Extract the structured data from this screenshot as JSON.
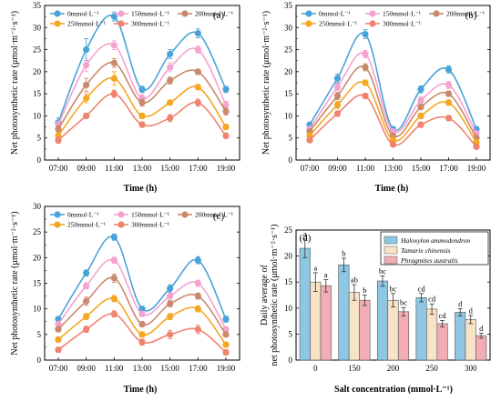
{
  "chart_data": [
    {
      "type": "line",
      "panel": "(a)",
      "x": [
        "07:00",
        "09:00",
        "11:00",
        "13:00",
        "15:00",
        "17:00",
        "19:00"
      ],
      "xlabel": "Time (h)",
      "ylabel": "Net photosynthetic rate (μmol·m⁻²·s⁻¹)",
      "ylim": [
        0,
        35
      ],
      "yticks": [
        0,
        5,
        10,
        15,
        20,
        25,
        30,
        35
      ],
      "legend": "top-left",
      "series": [
        {
          "name": "0mmol·L⁻¹",
          "color": "#4aa3d8",
          "values": [
            8.5,
            25,
            32.5,
            16,
            24,
            28.7,
            16
          ],
          "errors": [
            1,
            2.5,
            1,
            0.7,
            1,
            1,
            0.7
          ]
        },
        {
          "name": "150mmol·L⁻¹",
          "color": "#f4a3cf",
          "values": [
            8,
            21.5,
            26,
            14,
            21,
            25,
            12.5
          ],
          "errors": [
            0.8,
            1.5,
            1,
            0.8,
            1,
            0.8,
            0.8
          ]
        },
        {
          "name": "200mmol·L⁻¹",
          "color": "#c9896b",
          "values": [
            7,
            17,
            22,
            13,
            18,
            20,
            11
          ],
          "errors": [
            0.8,
            1.5,
            1,
            0.8,
            0.8,
            0.6,
            0.8
          ]
        },
        {
          "name": "250mmol·L⁻¹",
          "color": "#f5a623",
          "values": [
            5.5,
            14,
            18.5,
            10,
            13,
            16.5,
            7.5
          ],
          "errors": [
            0.7,
            1,
            1.5,
            0.6,
            0.5,
            0.6,
            0.6
          ]
        },
        {
          "name": "300mmol·L⁻¹",
          "color": "#f0836f",
          "values": [
            4.5,
            10,
            15,
            8,
            9.5,
            13,
            5.5
          ],
          "errors": [
            0.7,
            0.6,
            0.8,
            0.6,
            0.8,
            0.8,
            0.6
          ]
        }
      ]
    },
    {
      "type": "line",
      "panel": "(b)",
      "x": [
        "07:00",
        "09:00",
        "11:00",
        "13:00",
        "15:00",
        "17:00",
        "19:00"
      ],
      "xlabel": "Time (h)",
      "ylabel": "Net photosynthetic rate (μmol·m⁻²·s⁻¹)",
      "ylim": [
        0,
        35
      ],
      "yticks": [
        0,
        5,
        10,
        15,
        20,
        25,
        30,
        35
      ],
      "legend": "top-left",
      "series": [
        {
          "name": "0mmol·L⁻¹",
          "color": "#4aa3d8",
          "values": [
            8,
            18.5,
            28.5,
            7,
            16,
            20.5,
            7
          ],
          "errors": [
            0.5,
            1,
            1,
            0.5,
            0.8,
            0.8,
            0.5
          ]
        },
        {
          "name": "150mmol·L⁻¹",
          "color": "#f4a3cf",
          "values": [
            7,
            16.5,
            24,
            6.5,
            13.5,
            17,
            6
          ],
          "errors": [
            0.5,
            0.8,
            0.8,
            0.5,
            0.8,
            0.8,
            0.5
          ]
        },
        {
          "name": "200mmol·L⁻¹",
          "color": "#c9896b",
          "values": [
            6.5,
            14.5,
            21,
            5.5,
            12,
            15,
            5
          ],
          "errors": [
            0.5,
            0.8,
            0.8,
            0.5,
            0.6,
            0.6,
            0.5
          ]
        },
        {
          "name": "250mmol·L⁻¹",
          "color": "#f5a623",
          "values": [
            5.5,
            12.5,
            17.5,
            4.5,
            10,
            13,
            4
          ],
          "errors": [
            0.5,
            0.8,
            0.6,
            0.5,
            0.6,
            0.6,
            0.5
          ]
        },
        {
          "name": "300mmol·L⁻¹",
          "color": "#f0836f",
          "values": [
            4.5,
            10.5,
            14.5,
            3.5,
            8,
            9.5,
            3
          ],
          "errors": [
            0.5,
            0.6,
            0.6,
            0.4,
            0.6,
            0.6,
            0.4
          ]
        }
      ]
    },
    {
      "type": "line",
      "panel": "(c)",
      "x": [
        "07:00",
        "09:00",
        "11:00",
        "13:00",
        "15:00",
        "17:00",
        "19:00"
      ],
      "xlabel": "Time (h)",
      "ylabel": "Net photosynthetic rate (μmol·m⁻²·s⁻¹)",
      "ylim": [
        0,
        30
      ],
      "yticks": [
        0,
        5,
        10,
        15,
        20,
        25,
        30
      ],
      "legend": "top-left",
      "series": [
        {
          "name": "0mmol·L⁻¹",
          "color": "#4aa3d8",
          "values": [
            8,
            17,
            24,
            10,
            14,
            19.5,
            8
          ],
          "errors": [
            0.5,
            0.6,
            0.6,
            0.5,
            0.7,
            0.7,
            0.6
          ]
        },
        {
          "name": "150mmol·L⁻¹",
          "color": "#f4a3cf",
          "values": [
            7,
            14.5,
            19.5,
            9,
            12.5,
            15,
            6
          ],
          "errors": [
            0.5,
            0.6,
            0.6,
            0.5,
            0.6,
            0.6,
            0.5
          ]
        },
        {
          "name": "200mmol·L⁻¹",
          "color": "#c9896b",
          "values": [
            6,
            11.5,
            16,
            7,
            11,
            12.5,
            5
          ],
          "errors": [
            0.5,
            0.8,
            0.8,
            0.5,
            0.6,
            0.6,
            0.5
          ]
        },
        {
          "name": "250mmol·L⁻¹",
          "color": "#f5a623",
          "values": [
            4,
            8.5,
            12,
            5,
            8.5,
            10,
            3
          ],
          "errors": [
            0.5,
            0.6,
            0.6,
            0.5,
            0.6,
            0.6,
            0.5
          ]
        },
        {
          "name": "300mmol·L⁻¹",
          "color": "#f0836f",
          "values": [
            2,
            6,
            9,
            3.5,
            5,
            6,
            1.5
          ],
          "errors": [
            0.5,
            0.6,
            0.6,
            0.6,
            0.8,
            0.8,
            0.5
          ]
        }
      ]
    },
    {
      "type": "bar",
      "panel": "(d)",
      "categories": [
        "0",
        "150",
        "200",
        "250",
        "300"
      ],
      "xlabel": "Salt concentration (mmol·L⁻¹)",
      "ylabel_line1": "Daily average of",
      "ylabel_line2": "net photosynthetic rate (μmol·m⁻²·s⁻¹)",
      "ylim": [
        0,
        25
      ],
      "yticks": [
        0,
        5,
        10,
        15,
        20,
        25
      ],
      "legend": "top-right",
      "series": [
        {
          "name": "Haloxylon ammodendron",
          "color": "#8ec7e3",
          "values": [
            21.5,
            18.3,
            15.2,
            12,
            9.2
          ],
          "errors": [
            1.8,
            1.3,
            1,
            0.8,
            0.7
          ],
          "labels": [
            "a",
            "b",
            "bc",
            "cd",
            "d"
          ]
        },
        {
          "name": "Tamarix chinensis",
          "color": "#f7e3c6",
          "values": [
            15,
            13,
            11.5,
            9.8,
            7.8
          ],
          "errors": [
            1.8,
            1.5,
            1.3,
            1,
            0.8
          ],
          "labels": [
            "a",
            "ab",
            "bc",
            "cd",
            "d"
          ]
        },
        {
          "name": "Phragmites australis",
          "color": "#f2aeb4",
          "values": [
            14.3,
            11.5,
            9.3,
            7,
            4.7
          ],
          "errors": [
            1.2,
            1,
            0.8,
            0.6,
            0.5
          ],
          "labels": [
            "a",
            "b",
            "bc",
            "cd",
            "d"
          ]
        }
      ]
    }
  ]
}
